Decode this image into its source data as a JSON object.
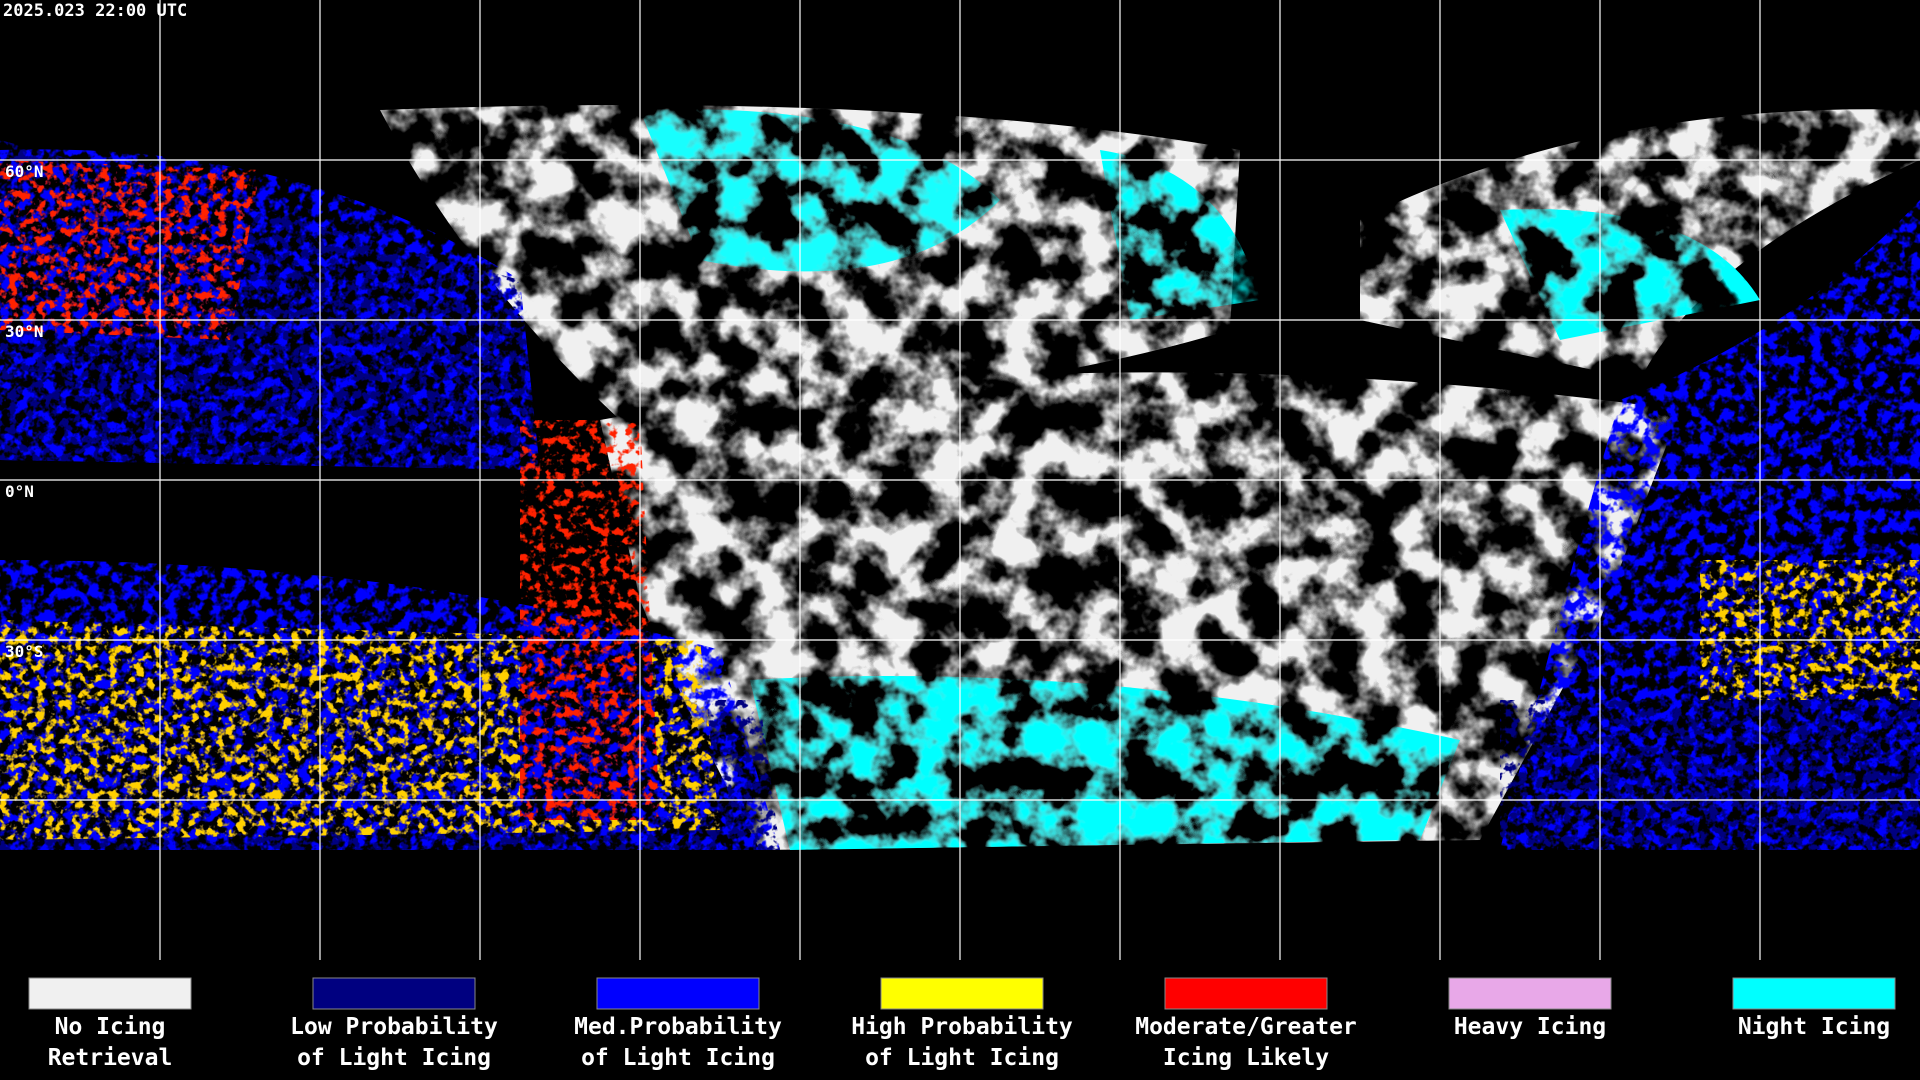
{
  "header": {
    "timestamp": "2025.023 22:00 UTC"
  },
  "latitude_labels": [
    "60°N",
    "30°N",
    "0°N",
    "30°S"
  ],
  "legend": [
    {
      "color": "#f0f0f0",
      "lines": [
        "No Icing",
        "Retrieval"
      ]
    },
    {
      "color": "#000080",
      "lines": [
        "Low Probability",
        "of Light Icing"
      ]
    },
    {
      "color": "#0000ff",
      "lines": [
        "Med.Probability",
        "of Light Icing"
      ]
    },
    {
      "color": "#ffff00",
      "lines": [
        "High Probability",
        "of Light Icing"
      ]
    },
    {
      "color": "#ff0000",
      "lines": [
        "Moderate/Greater",
        "Icing Likely"
      ]
    },
    {
      "color": "#e8a8e8",
      "lines": [
        "Heavy Icing"
      ]
    },
    {
      "color": "#00ffff",
      "lines": [
        "Night Icing"
      ]
    }
  ]
}
